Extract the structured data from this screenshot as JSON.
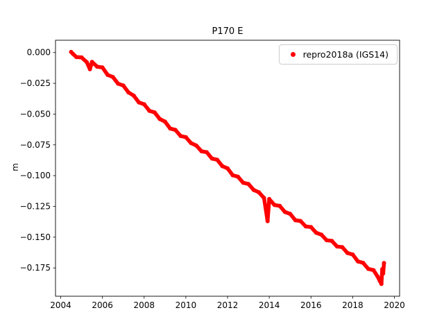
{
  "chart_data": {
    "type": "scatter",
    "title": "P170 E",
    "xlabel": "",
    "ylabel": "m",
    "grid": false,
    "legend_position": "upper right",
    "legend_border_color": "#cccccc",
    "xlim": [
      2003.75,
      2020.25
    ],
    "ylim": [
      -0.198,
      0.01
    ],
    "xticks": [
      2004,
      2006,
      2008,
      2010,
      2012,
      2014,
      2016,
      2018,
      2020
    ],
    "xtick_labels": [
      "2004",
      "2006",
      "2008",
      "2010",
      "2012",
      "2014",
      "2016",
      "2018",
      "2020"
    ],
    "yticks": [
      0.0,
      -0.025,
      -0.05,
      -0.075,
      -0.1,
      -0.125,
      -0.15,
      -0.175
    ],
    "ytick_labels": [
      "0.000",
      "−0.025",
      "−0.050",
      "−0.075",
      "−0.100",
      "−0.125",
      "−0.150",
      "−0.175"
    ],
    "series": [
      {
        "name": "repro2018a (IGS14)",
        "color": "#ff0000",
        "marker": "dot",
        "points": [
          [
            2004.5,
            0.0005
          ],
          [
            2004.58,
            -0.001
          ],
          [
            2004.75,
            -0.0037
          ],
          [
            2005.0,
            -0.004
          ],
          [
            2005.25,
            -0.0078
          ],
          [
            2005.4,
            -0.0135
          ],
          [
            2005.5,
            -0.0076
          ],
          [
            2005.75,
            -0.0115
          ],
          [
            2006.0,
            -0.0121
          ],
          [
            2006.25,
            -0.0182
          ],
          [
            2006.5,
            -0.0199
          ],
          [
            2006.75,
            -0.0253
          ],
          [
            2007.0,
            -0.0268
          ],
          [
            2007.25,
            -0.0324
          ],
          [
            2007.5,
            -0.035
          ],
          [
            2007.75,
            -0.0405
          ],
          [
            2008.0,
            -0.042
          ],
          [
            2008.25,
            -0.0473
          ],
          [
            2008.5,
            -0.0486
          ],
          [
            2008.75,
            -0.054
          ],
          [
            2009.0,
            -0.0561
          ],
          [
            2009.25,
            -0.0617
          ],
          [
            2009.5,
            -0.0629
          ],
          [
            2009.75,
            -0.0678
          ],
          [
            2010.0,
            -0.0688
          ],
          [
            2010.25,
            -0.0736
          ],
          [
            2010.5,
            -0.0755
          ],
          [
            2010.75,
            -0.0802
          ],
          [
            2011.0,
            -0.081
          ],
          [
            2011.25,
            -0.0861
          ],
          [
            2011.5,
            -0.0871
          ],
          [
            2011.75,
            -0.0923
          ],
          [
            2012.0,
            -0.0941
          ],
          [
            2012.25,
            -0.0997
          ],
          [
            2012.5,
            -0.1009
          ],
          [
            2012.75,
            -0.1058
          ],
          [
            2013.0,
            -0.1068
          ],
          [
            2013.25,
            -0.1116
          ],
          [
            2013.5,
            -0.1135
          ],
          [
            2013.75,
            -0.1182
          ],
          [
            2013.92,
            -0.137
          ],
          [
            2014.0,
            -0.119
          ],
          [
            2014.25,
            -0.1238
          ],
          [
            2014.5,
            -0.1246
          ],
          [
            2014.75,
            -0.1295
          ],
          [
            2015.0,
            -0.1311
          ],
          [
            2015.25,
            -0.1362
          ],
          [
            2015.5,
            -0.1369
          ],
          [
            2015.75,
            -0.1413
          ],
          [
            2016.0,
            -0.1418
          ],
          [
            2016.25,
            -0.1464
          ],
          [
            2016.5,
            -0.148
          ],
          [
            2016.75,
            -0.1525
          ],
          [
            2017.0,
            -0.153
          ],
          [
            2017.25,
            -0.1576
          ],
          [
            2017.5,
            -0.1581
          ],
          [
            2017.75,
            -0.1628
          ],
          [
            2018.0,
            -0.1641
          ],
          [
            2018.25,
            -0.1697
          ],
          [
            2018.5,
            -0.1709
          ],
          [
            2018.75,
            -0.1758
          ],
          [
            2019.0,
            -0.1768
          ],
          [
            2019.2,
            -0.1821
          ],
          [
            2019.3,
            -0.1855
          ],
          [
            2019.38,
            -0.188
          ],
          [
            2019.42,
            -0.176
          ],
          [
            2019.46,
            -0.1795
          ],
          [
            2019.5,
            -0.171
          ]
        ]
      }
    ]
  }
}
